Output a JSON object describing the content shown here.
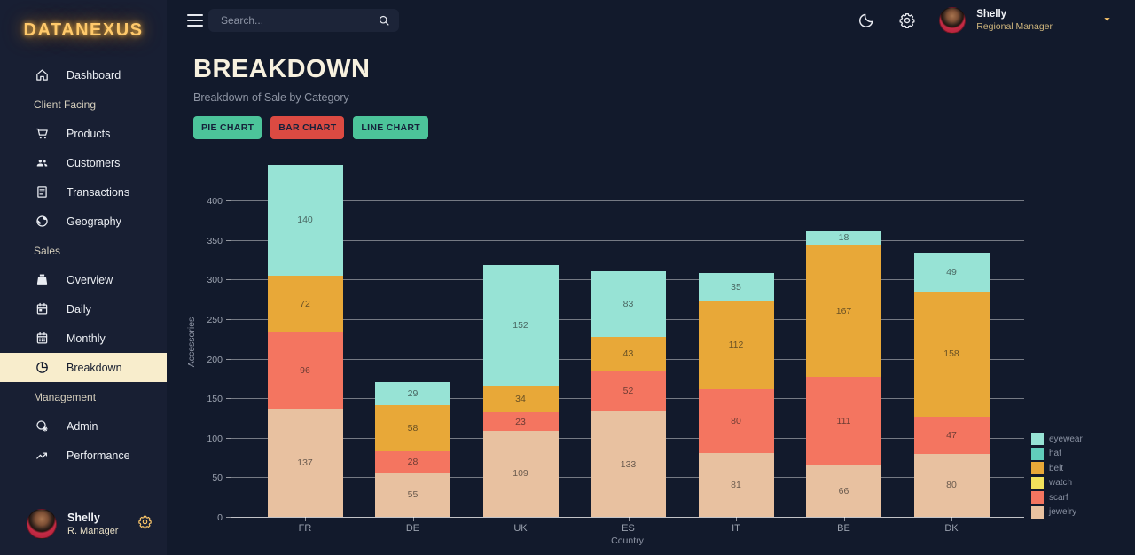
{
  "theme": {
    "bg_main": "#121a2c",
    "bg_sidebar": "#181f33",
    "bg_search": "#1c2438",
    "accent_cream": "#f8edcc",
    "accent_gold": "#ffc96b",
    "btn_text": "#16213a",
    "btn_teal": "#4cc49a",
    "btn_red": "#db4a42"
  },
  "sidebar": {
    "logo": "DATANEXUS",
    "items": [
      {
        "type": "item",
        "label": "Dashboard",
        "icon": "home"
      },
      {
        "type": "header",
        "label": "Client Facing"
      },
      {
        "type": "item",
        "label": "Products",
        "icon": "cart"
      },
      {
        "type": "item",
        "label": "Customers",
        "icon": "people"
      },
      {
        "type": "item",
        "label": "Transactions",
        "icon": "receipt"
      },
      {
        "type": "item",
        "label": "Geography",
        "icon": "globe"
      },
      {
        "type": "header",
        "label": "Sales"
      },
      {
        "type": "item",
        "label": "Overview",
        "icon": "pos"
      },
      {
        "type": "item",
        "label": "Daily",
        "icon": "calendar-day"
      },
      {
        "type": "item",
        "label": "Monthly",
        "icon": "calendar-month"
      },
      {
        "type": "item",
        "label": "Breakdown",
        "icon": "pie",
        "active": true
      },
      {
        "type": "header",
        "label": "Management"
      },
      {
        "type": "item",
        "label": "Admin",
        "icon": "admin"
      },
      {
        "type": "item",
        "label": "Performance",
        "icon": "trend"
      }
    ],
    "profile": {
      "name": "Shelly",
      "role": "R. Manager"
    }
  },
  "topbar": {
    "search_placeholder": "Search...",
    "user": {
      "name": "Shelly",
      "role": "Regional Manager"
    }
  },
  "header": {
    "title": "BREAKDOWN",
    "subtitle": "Breakdown of Sale by Category",
    "buttons": [
      {
        "label": "PIE CHART",
        "color": "#4cc49a"
      },
      {
        "label": "BAR CHART",
        "color": "#db4a42"
      },
      {
        "label": "LINE CHART",
        "color": "#4cc49a"
      }
    ]
  },
  "chart_data": {
    "type": "bar",
    "stacked": true,
    "categories": [
      "FR",
      "DE",
      "UK",
      "ES",
      "IT",
      "BE",
      "DK"
    ],
    "series": [
      {
        "name": "jewelry",
        "color": "#e8c1a0",
        "values": [
          137,
          55,
          109,
          133,
          81,
          66,
          80
        ]
      },
      {
        "name": "scarf",
        "color": "#f47560",
        "values": [
          96,
          28,
          23,
          52,
          80,
          111,
          47
        ]
      },
      {
        "name": "belt",
        "color": "#e8a838",
        "values": [
          72,
          58,
          34,
          43,
          112,
          167,
          158
        ]
      },
      {
        "name": "eyewear",
        "color": "#97e3d5",
        "values": [
          140,
          29,
          152,
          83,
          35,
          18,
          49
        ]
      }
    ],
    "legend": [
      {
        "label": "eyewear",
        "color": "#97e3d5"
      },
      {
        "label": "hat",
        "color": "#61cdbb"
      },
      {
        "label": "belt",
        "color": "#e8a838"
      },
      {
        "label": "watch",
        "color": "#f1e15b"
      },
      {
        "label": "scarf",
        "color": "#f47560"
      },
      {
        "label": "jewelry",
        "color": "#e8c1a0"
      }
    ],
    "xlabel": "Country",
    "ylabel": "Accessories",
    "y_ticks": [
      0,
      50,
      100,
      150,
      200,
      250,
      300,
      350,
      400
    ],
    "ylim": [
      0,
      445
    ],
    "grid": "horizontal",
    "legend_position": "bottom-right"
  }
}
